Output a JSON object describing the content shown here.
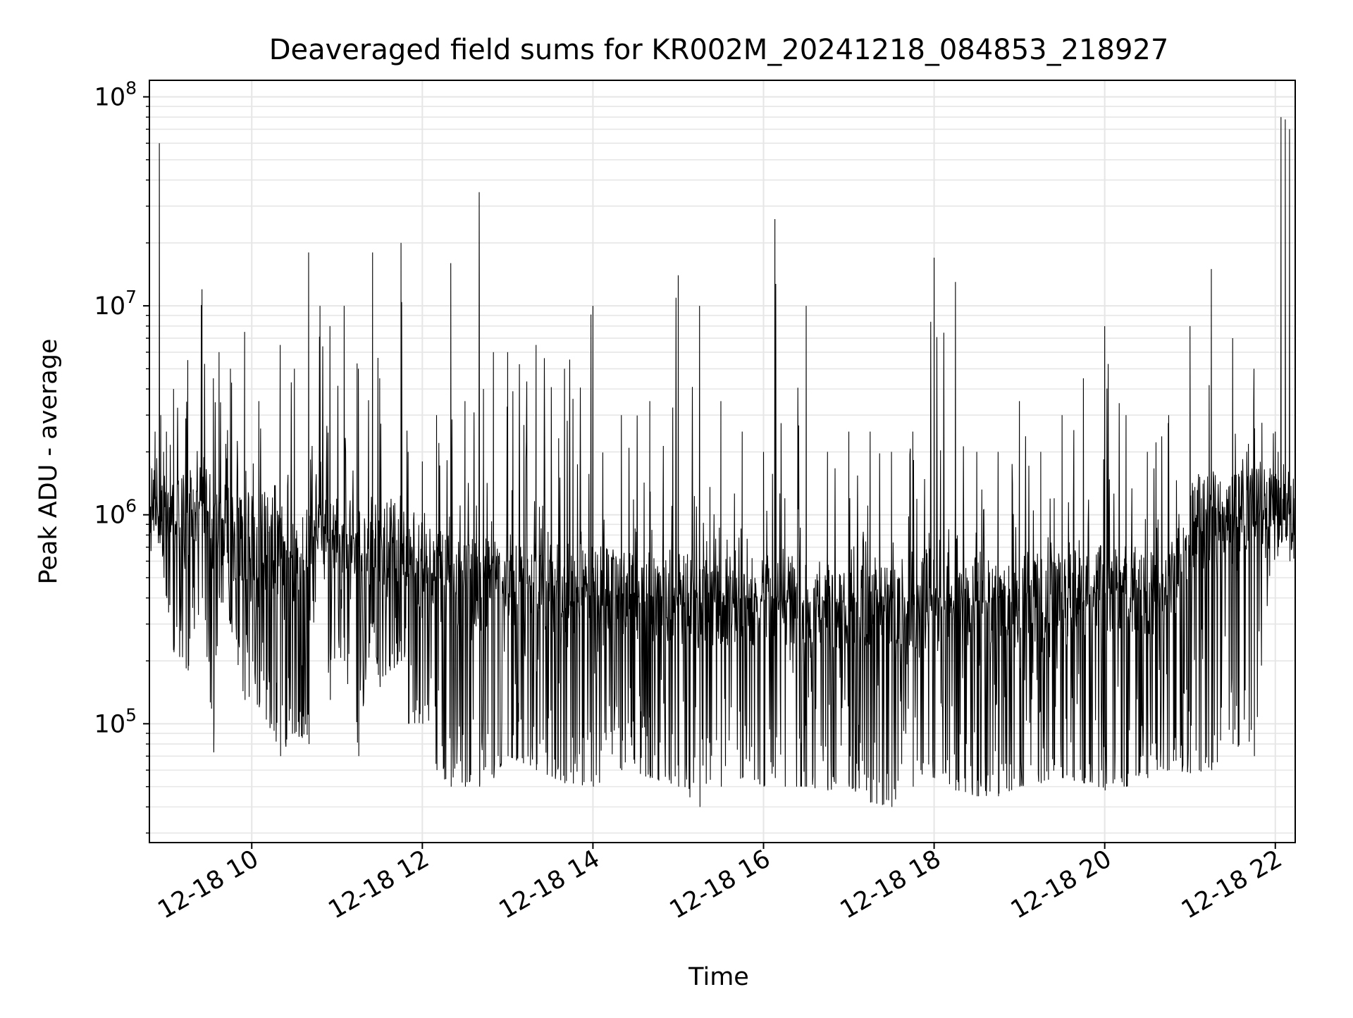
{
  "chart_data": {
    "type": "line",
    "title": "Deaveraged field sums for KR002M_20241218_084853_218927",
    "xlabel": "Time",
    "ylabel": "Peak ADU - average",
    "y_scale": "log",
    "ylim": [
      27000,
      120000000
    ],
    "xlim": [
      "2024-12-18 08:48",
      "2024-12-18 22:14"
    ],
    "x_ticks": [
      {
        "t": "2024-12-18 10:00",
        "label": "12-18 10"
      },
      {
        "t": "2024-12-18 12:00",
        "label": "12-18 12"
      },
      {
        "t": "2024-12-18 14:00",
        "label": "12-18 14"
      },
      {
        "t": "2024-12-18 16:00",
        "label": "12-18 16"
      },
      {
        "t": "2024-12-18 18:00",
        "label": "12-18 18"
      },
      {
        "t": "2024-12-18 20:00",
        "label": "12-18 20"
      },
      {
        "t": "2024-12-18 22:00",
        "label": "12-18 22"
      }
    ],
    "y_ticks": [
      {
        "value": 100000,
        "base": "10",
        "exp": "5"
      },
      {
        "value": 1000000,
        "base": "10",
        "exp": "6"
      },
      {
        "value": 10000000,
        "base": "10",
        "exp": "7"
      },
      {
        "value": 100000000,
        "base": "10",
        "exp": "8"
      }
    ],
    "grid": true,
    "series_color": "#000000",
    "series": [
      {
        "x": [
          "2024-12-18 08:48",
          "2024-12-18 08:52",
          "2024-12-18 08:55",
          "2024-12-18 08:56",
          "2024-12-18 08:58",
          "2024-12-18 09:00",
          "2024-12-18 09:05",
          "2024-12-18 09:15",
          "2024-12-18 09:25",
          "2024-12-18 09:33",
          "2024-12-18 09:37",
          "2024-12-18 09:45",
          "2024-12-18 09:55",
          "2024-12-18 10:05",
          "2024-12-18 10:20",
          "2024-12-18 10:30",
          "2024-12-18 10:40",
          "2024-12-18 10:48",
          "2024-12-18 10:55",
          "2024-12-18 11:05",
          "2024-12-18 11:15",
          "2024-12-18 11:25",
          "2024-12-18 11:30",
          "2024-12-18 11:45",
          "2024-12-18 11:50",
          "2024-12-18 12:00",
          "2024-12-18 12:10",
          "2024-12-18 12:20",
          "2024-12-18 12:30",
          "2024-12-18 12:40",
          "2024-12-18 12:43",
          "2024-12-18 12:50",
          "2024-12-18 13:00",
          "2024-12-18 13:20",
          "2024-12-18 13:40",
          "2024-12-18 14:00",
          "2024-12-18 14:20",
          "2024-12-18 14:40",
          "2024-12-18 15:00",
          "2024-12-18 15:15",
          "2024-12-18 15:30",
          "2024-12-18 15:45",
          "2024-12-18 16:00",
          "2024-12-18 16:08",
          "2024-12-18 16:15",
          "2024-12-18 16:30",
          "2024-12-18 16:45",
          "2024-12-18 17:00",
          "2024-12-18 17:15",
          "2024-12-18 17:30",
          "2024-12-18 17:45",
          "2024-12-18 18:00",
          "2024-12-18 18:15",
          "2024-12-18 18:30",
          "2024-12-18 18:45",
          "2024-12-18 19:00",
          "2024-12-18 19:15",
          "2024-12-18 19:30",
          "2024-12-18 19:45",
          "2024-12-18 20:00",
          "2024-12-18 20:15",
          "2024-12-18 20:30",
          "2024-12-18 20:45",
          "2024-12-18 21:00",
          "2024-12-18 21:15",
          "2024-12-18 21:30",
          "2024-12-18 21:45",
          "2024-12-18 22:00",
          "2024-12-18 22:02",
          "2024-12-18 22:04",
          "2024-12-18 22:07",
          "2024-12-18 22:10",
          "2024-12-18 22:13"
        ],
        "y_high": [
          1800000,
          2500000,
          60000000,
          3000000,
          2000000,
          2500000,
          4000000,
          5500000,
          12000000,
          4500000,
          6000000,
          5000000,
          7500000,
          3500000,
          6500000,
          5000000,
          18000000,
          10000000,
          8000000,
          10000000,
          5000000,
          18000000,
          4500000,
          20000000,
          2000000,
          1800000,
          3000000,
          16000000,
          3500000,
          35000000,
          4000000,
          6000000,
          6000000,
          6500000,
          5000000,
          10000000,
          3000000,
          3500000,
          14000000,
          10000000,
          3500000,
          2500000,
          2000000,
          26000000,
          1200000,
          10000000,
          2000000,
          2500000,
          2500000,
          2000000,
          2500000,
          17000000,
          13000000,
          2000000,
          2000000,
          3500000,
          2000000,
          3000000,
          4500000,
          8000000,
          3000000,
          2000000,
          3000000,
          8000000,
          15000000,
          7000000,
          5000000,
          2500000,
          2000000,
          80000000,
          78000000,
          70000000,
          1200000
        ],
        "y_low": [
          1000000,
          900000,
          1000000,
          800000,
          500000,
          400000,
          220000,
          180000,
          400000,
          73000,
          400000,
          300000,
          130000,
          120000,
          70000,
          90000,
          80000,
          1000000,
          130000,
          200000,
          70000,
          300000,
          150000,
          200000,
          100000,
          100000,
          60000,
          50000,
          50000,
          50000,
          60000,
          55000,
          70000,
          60000,
          52000,
          50000,
          60000,
          55000,
          50000,
          40000,
          50000,
          55000,
          50000,
          55000,
          50000,
          50000,
          48000,
          50000,
          42000,
          40000,
          50000,
          55000,
          48000,
          45000,
          45000,
          50000,
          52000,
          55000,
          52000,
          48000,
          50000,
          55000,
          60000,
          58000,
          60000,
          80000,
          70000,
          1000000,
          700000,
          900000,
          800000,
          600000,
          800000
        ],
        "y_center": [
          1000000,
          1200000,
          1200000,
          1200000,
          1000000,
          1000000,
          1000000,
          1000000,
          1200000,
          900000,
          1000000,
          800000,
          800000,
          800000,
          700000,
          600000,
          800000,
          1200000,
          800000,
          900000,
          700000,
          800000,
          700000,
          800000,
          600000,
          600000,
          500000,
          500000,
          450000,
          450000,
          480000,
          450000,
          500000,
          450000,
          450000,
          450000,
          420000,
          400000,
          400000,
          380000,
          380000,
          400000,
          380000,
          400000,
          380000,
          380000,
          380000,
          380000,
          380000,
          380000,
          380000,
          400000,
          400000,
          380000,
          380000,
          400000,
          400000,
          400000,
          400000,
          450000,
          420000,
          420000,
          450000,
          900000,
          1000000,
          1100000,
          1100000,
          1000000,
          1000000,
          1000000,
          1000000,
          1000000,
          1000000
        ]
      }
    ]
  }
}
